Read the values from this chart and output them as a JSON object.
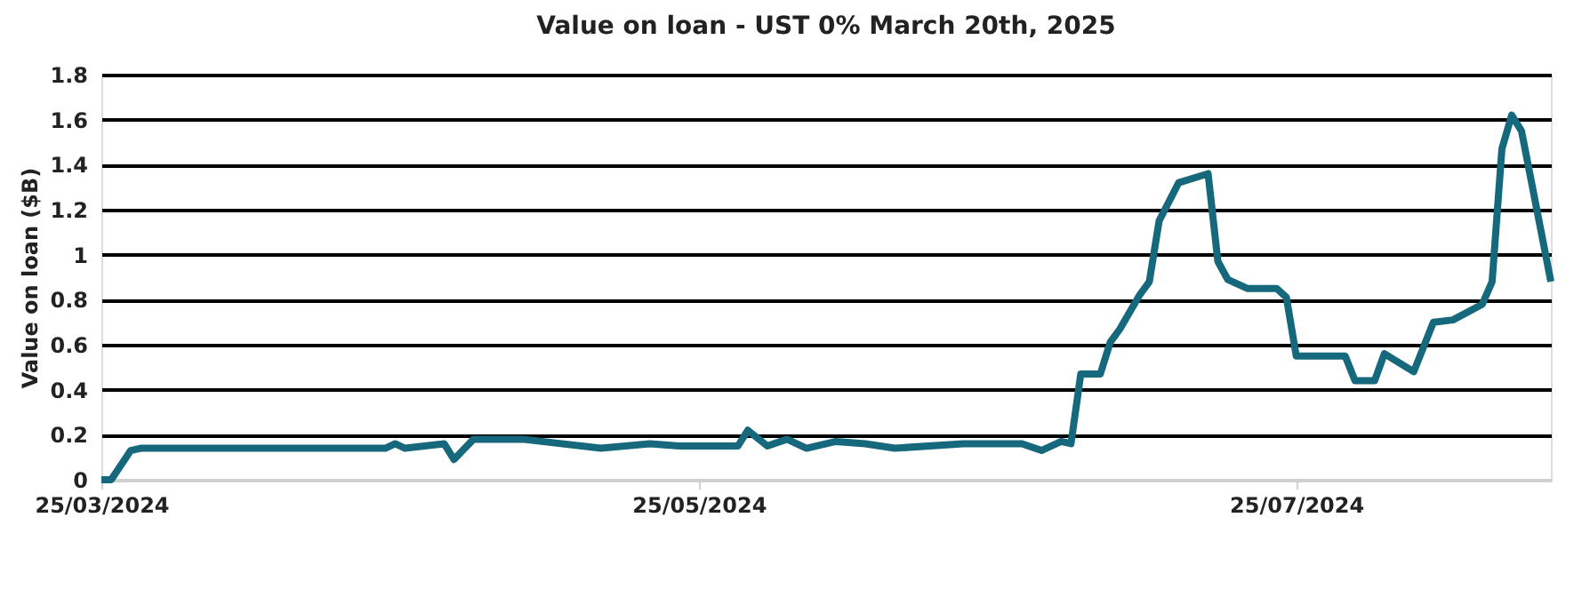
{
  "chart_data": {
    "type": "line",
    "title": "Value on loan - UST 0% March 20th, 2025",
    "ylabel": "Value on loan ($B)",
    "x": [
      "2024-03-25",
      "2024-03-26",
      "2024-03-28",
      "2024-03-29",
      "2024-04-08",
      "2024-04-23",
      "2024-04-24",
      "2024-04-25",
      "2024-04-29",
      "2024-04-30",
      "2024-05-02",
      "2024-05-07",
      "2024-05-15",
      "2024-05-20",
      "2024-05-23",
      "2024-05-29",
      "2024-05-30",
      "2024-06-01",
      "2024-06-03",
      "2024-06-05",
      "2024-06-08",
      "2024-06-11",
      "2024-06-14",
      "2024-06-21",
      "2024-06-27",
      "2024-06-29",
      "2024-07-01",
      "2024-07-02",
      "2024-07-03",
      "2024-07-05",
      "2024-07-06",
      "2024-07-07",
      "2024-07-09",
      "2024-07-10",
      "2024-07-11",
      "2024-07-13",
      "2024-07-16",
      "2024-07-17",
      "2024-07-18",
      "2024-07-20",
      "2024-07-23",
      "2024-07-24",
      "2024-07-25",
      "2024-07-30",
      "2024-07-31",
      "2024-08-02",
      "2024-08-03",
      "2024-08-06",
      "2024-08-08",
      "2024-08-10",
      "2024-08-13",
      "2024-08-14",
      "2024-08-15",
      "2024-08-16",
      "2024-08-17",
      "2024-08-20"
    ],
    "series": [
      {
        "color": "#16687d",
        "values": [
          0,
          0,
          0.13,
          0.14,
          0.14,
          0.14,
          0.16,
          0.14,
          0.16,
          0.09,
          0.18,
          0.18,
          0.14,
          0.16,
          0.15,
          0.15,
          0.22,
          0.15,
          0.18,
          0.14,
          0.17,
          0.16,
          0.14,
          0.16,
          0.16,
          0.13,
          0.17,
          0.16,
          0.47,
          0.47,
          0.61,
          0.67,
          0.82,
          0.88,
          1.15,
          1.32,
          1.36,
          0.97,
          0.89,
          0.85,
          0.85,
          0.81,
          0.55,
          0.55,
          0.44,
          0.44,
          0.56,
          0.48,
          0.7,
          0.71,
          0.78,
          0.88,
          1.47,
          1.62,
          1.55,
          0.88
        ]
      }
    ],
    "xlim": [
      "2024-03-25",
      "2024-08-20"
    ],
    "xticks": [
      {
        "value": "2024-03-25",
        "label": "25/03/2024"
      },
      {
        "value": "2024-05-25",
        "label": "25/05/2024"
      },
      {
        "value": "2024-07-25",
        "label": "25/07/2024"
      }
    ],
    "ylim": [
      0,
      1.8
    ],
    "yticks": [
      0,
      0.2,
      0.4,
      0.6,
      0.8,
      1,
      1.2,
      1.4,
      1.6,
      1.8
    ],
    "grid": "y",
    "marker": "none",
    "line_style": "solid"
  }
}
